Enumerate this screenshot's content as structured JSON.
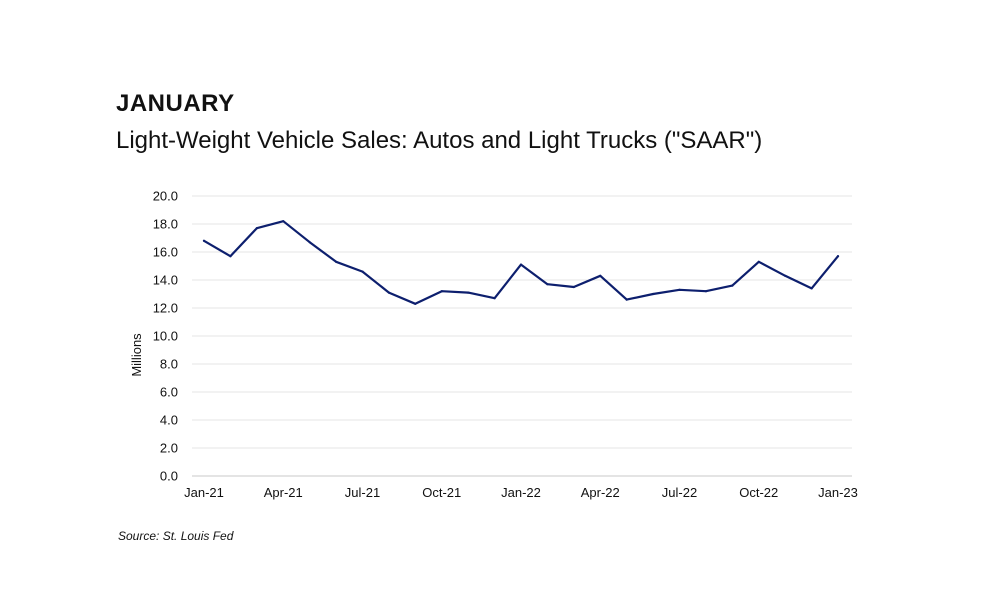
{
  "header": {
    "heading": "JANUARY",
    "subtitle": "Light-Weight Vehicle Sales: Autos and Light Trucks (\"SAAR\")"
  },
  "footer": {
    "source": "Source: St. Louis Fed"
  },
  "colors": {
    "line": "#0d1f6e",
    "grid": "#e4e4e4",
    "axis": "#c8c8c8"
  },
  "chart_data": {
    "type": "line",
    "title": "Light-Weight Vehicle Sales: Autos and Light Trucks (\"SAAR\")",
    "xlabel": "",
    "ylabel": "Millions",
    "ylim": [
      0,
      20
    ],
    "grid": true,
    "yticks": [
      0,
      2,
      4,
      6,
      8,
      10,
      12,
      14,
      16,
      18,
      20
    ],
    "ytick_labels": [
      "0.0",
      "2.0",
      "4.0",
      "6.0",
      "8.0",
      "10.0",
      "12.0",
      "14.0",
      "16.0",
      "18.0",
      "20.0"
    ],
    "xticks": [
      {
        "index": 0,
        "label": "Jan-21"
      },
      {
        "index": 3,
        "label": "Apr-21"
      },
      {
        "index": 6,
        "label": "Jul-21"
      },
      {
        "index": 9,
        "label": "Oct-21"
      },
      {
        "index": 12,
        "label": "Jan-22"
      },
      {
        "index": 15,
        "label": "Apr-22"
      },
      {
        "index": 18,
        "label": "Jul-22"
      },
      {
        "index": 21,
        "label": "Oct-22"
      },
      {
        "index": 24,
        "label": "Jan-23"
      }
    ],
    "series": [
      {
        "name": "Light-Weight Vehicle Sales",
        "x": [
          "Jan-21",
          "Feb-21",
          "Mar-21",
          "Apr-21",
          "May-21",
          "Jun-21",
          "Jul-21",
          "Aug-21",
          "Sep-21",
          "Oct-21",
          "Nov-21",
          "Dec-21",
          "Jan-22",
          "Feb-22",
          "Mar-22",
          "Apr-22",
          "May-22",
          "Jun-22",
          "Jul-22",
          "Aug-22",
          "Sep-22",
          "Oct-22",
          "Nov-22",
          "Dec-22",
          "Jan-23"
        ],
        "values": [
          16.8,
          15.7,
          17.7,
          18.2,
          16.7,
          15.3,
          14.6,
          13.1,
          12.3,
          13.2,
          13.1,
          12.7,
          15.1,
          13.7,
          13.5,
          14.3,
          12.6,
          13.0,
          13.3,
          13.2,
          13.6,
          15.3,
          14.3,
          13.4,
          15.7
        ]
      }
    ]
  }
}
